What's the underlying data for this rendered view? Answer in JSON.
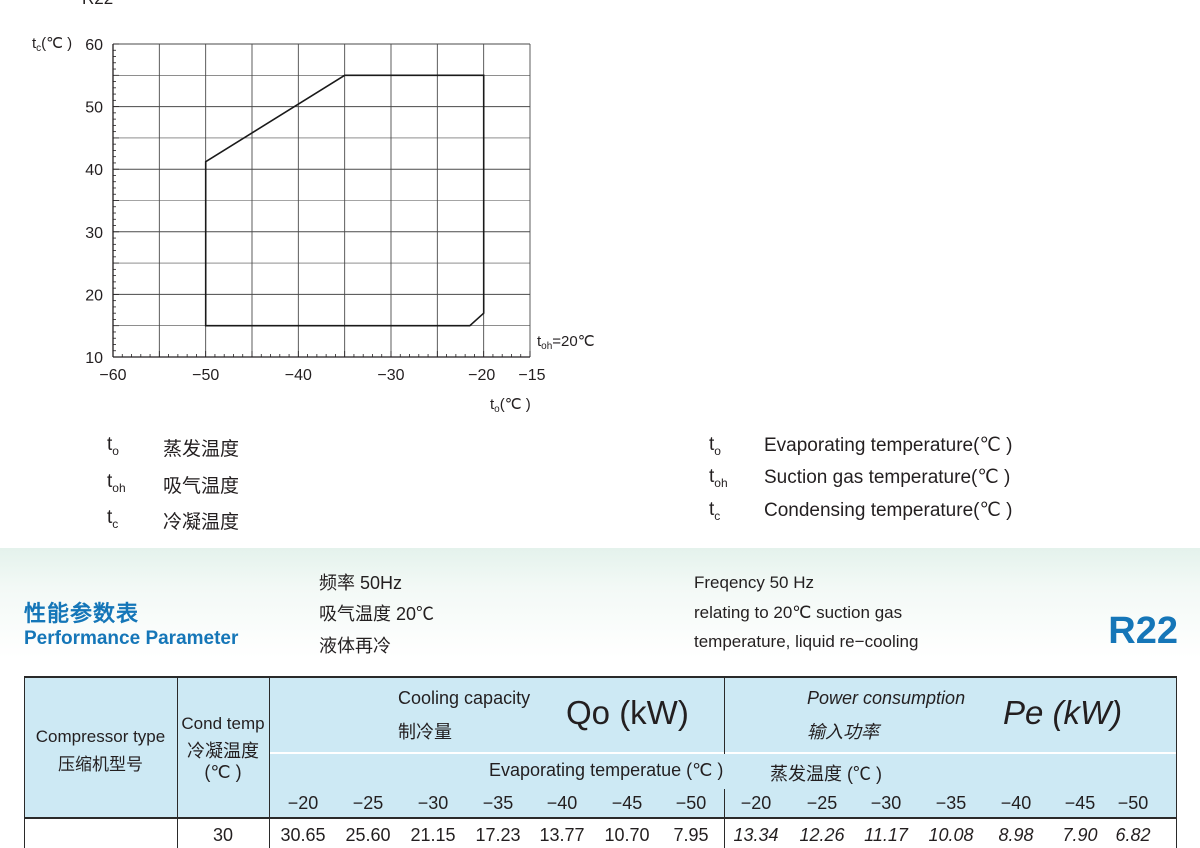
{
  "chart_data": {
    "type": "line",
    "title_partial": "R22",
    "ylabel": "t",
    "ylabel_sub": "c",
    "ylabel_unit": "(℃ )",
    "xlabel": "t",
    "xlabel_sub": "o",
    "xlabel_unit": "(℃ )",
    "annotation": "t",
    "annotation_sub": "oh",
    "annotation_suffix": "=20℃",
    "xlim": [
      -60,
      -15
    ],
    "ylim": [
      10,
      60
    ],
    "x_ticks": [
      "−60",
      "−50",
      "−40",
      "−30",
      "−20",
      "−15"
    ],
    "x_tick_values": [
      -60,
      -50,
      -40,
      -30,
      -20,
      -15
    ],
    "y_ticks": [
      "10",
      "20",
      "30",
      "40",
      "50",
      "60"
    ],
    "y_tick_values": [
      10,
      20,
      30,
      40,
      50,
      60
    ],
    "grid": true,
    "series": [
      {
        "x": [
          -50,
          -50,
          -35,
          -20,
          -20,
          -21.5,
          -50
        ],
        "y": [
          15,
          41.2,
          55,
          55,
          17,
          15,
          15
        ]
      }
    ]
  },
  "legend": {
    "cn": [
      {
        "sym": "t",
        "sub": "o",
        "text": "蒸发温度"
      },
      {
        "sym": "t",
        "sub": "oh",
        "text": "吸气温度"
      },
      {
        "sym": "t",
        "sub": "c",
        "text": "冷凝温度"
      }
    ],
    "en": [
      {
        "sym": "t",
        "sub": "o",
        "text": "Evaporating temperature(℃ )"
      },
      {
        "sym": "t",
        "sub": "oh",
        "text": "Suction gas temperature(℃ )"
      },
      {
        "sym": "t",
        "sub": "c",
        "text": "Condensing temperature(℃ )"
      }
    ]
  },
  "section": {
    "title_cn": "性能参数表",
    "title_en": "Performance Parameter",
    "conditions_cn": [
      "频率 50Hz",
      "吸气温度 20℃",
      "液体再冷"
    ],
    "conditions_en": [
      "Freqency 50 Hz",
      "relating to 20℃ suction gas",
      "temperature, liquid re−cooling"
    ],
    "refrigerant": "R22"
  },
  "table": {
    "header": {
      "compressor_type_en": "Compressor type",
      "compressor_type_cn": "压缩机型号",
      "cond_temp_en": "Cond temp",
      "cond_temp_cn": "冷凝温度",
      "cond_temp_unit": "(℃ )",
      "cooling_en": "Cooling capacity",
      "cooling_cn": "制冷量",
      "cooling_symbol": "Qo (kW)",
      "power_en": "Power consumption",
      "power_cn": "输入功率",
      "power_symbol": "Pe (kW)",
      "evap_en": "Evaporating temperatue (℃ )",
      "evap_cn": "蒸发温度 (℃ )",
      "evap_temps": [
        "−20",
        "−25",
        "−30",
        "−35",
        "−40",
        "−45",
        "−50"
      ]
    },
    "rows": [
      {
        "cond_temp": "30",
        "cooling": [
          "30.65",
          "25.60",
          "21.15",
          "17.23",
          "13.77",
          "10.70",
          "7.95"
        ],
        "power": [
          "13.34",
          "12.26",
          "11.17",
          "10.08",
          "8.98",
          "7.90",
          "6.82"
        ]
      }
    ]
  },
  "colors": {
    "accent_blue": "#1576b8",
    "header_fill": "#cde9f4",
    "border": "#2a2a2a",
    "grid": "#4a4a4a"
  }
}
